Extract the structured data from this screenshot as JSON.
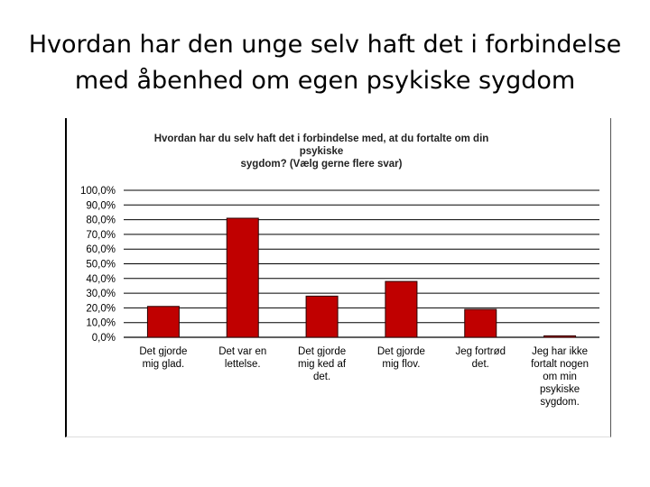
{
  "slide": {
    "title_line1": "Hvordan har den unge selv haft det i forbindelse",
    "title_line2": "med åbenhed om egen psykiske sygdom"
  },
  "colors": {
    "bar": "#c00000",
    "bar_stroke": "#2a0000",
    "grid": "#000000",
    "text": "#000000"
  },
  "chart_data": {
    "type": "bar",
    "title_line1": "Hvordan har du selv haft det i forbindelse med, at du fortalte om din psykiske",
    "title_line2": "sygdom? (Vælg gerne flere svar)",
    "xlabel": "",
    "ylabel": "",
    "ylim": [
      0,
      100
    ],
    "yticks": [
      "0,0%",
      "10,0%",
      "20,0%",
      "30,0%",
      "40,0%",
      "50,0%",
      "60,0%",
      "70,0%",
      "80,0%",
      "90,0%",
      "100,0%"
    ],
    "grid": true,
    "legend": "none",
    "categories": [
      [
        "Det gjorde",
        "mig glad."
      ],
      [
        "Det var en",
        "lettelse."
      ],
      [
        "Det gjorde",
        "mig ked af",
        "det."
      ],
      [
        "Det gjorde",
        "mig flov."
      ],
      [
        "Jeg fortrød",
        "det."
      ],
      [
        "Jeg har ikke",
        "fortalt nogen",
        "om min",
        "psykiske",
        "sygdom."
      ]
    ],
    "values": [
      21,
      81,
      28,
      38,
      19,
      1
    ]
  }
}
